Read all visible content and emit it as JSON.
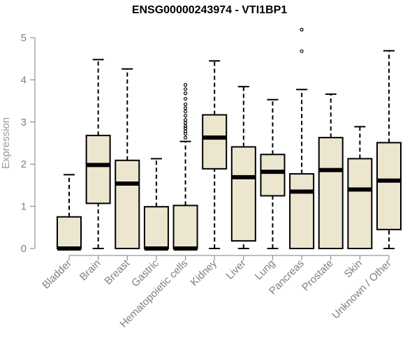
{
  "chart_data": {
    "type": "box",
    "title": "ENSG00000243974 - VTI1BP1",
    "xlabel": "",
    "ylabel": "Expression",
    "ylim": [
      0,
      5
    ],
    "yticks": [
      0,
      1,
      2,
      3,
      4,
      5
    ],
    "grid": false,
    "legend": "none",
    "colors": {
      "box_fill": "#ede6cf",
      "box_stroke": "#000000",
      "axis": "#7f7f7f",
      "tick_text": "#7f7f7f"
    },
    "categories": [
      "Bladder",
      "Brain",
      "Breast",
      "Gastric",
      "Hematopoietic cells",
      "Kidney",
      "Liver",
      "Lung",
      "Pancreas",
      "Prostate",
      "Skin",
      "Unknown / Other"
    ],
    "boxes": [
      {
        "name": "Bladder",
        "whisker_low": 0,
        "q1": 0,
        "median": 0,
        "q3": 0.75,
        "whisker_high": 1.75,
        "outliers": []
      },
      {
        "name": "Brain",
        "whisker_low": 0,
        "q1": 1.07,
        "median": 1.98,
        "q3": 2.68,
        "whisker_high": 4.48,
        "outliers": []
      },
      {
        "name": "Breast",
        "whisker_low": 0,
        "q1": 0,
        "median": 1.54,
        "q3": 2.09,
        "whisker_high": 4.26,
        "outliers": []
      },
      {
        "name": "Gastric",
        "whisker_low": 0,
        "q1": 0,
        "median": 0,
        "q3": 0.99,
        "whisker_high": 2.13,
        "outliers": []
      },
      {
        "name": "Hematopoietic cells",
        "whisker_low": 0,
        "q1": 0,
        "median": 0,
        "q3": 1.02,
        "whisker_high": 2.54,
        "outliers": [
          2.63,
          2.72,
          2.78,
          2.85,
          2.9,
          2.98,
          3.05,
          3.15,
          3.25,
          3.33,
          3.42,
          3.55,
          3.68,
          3.78,
          3.88
        ]
      },
      {
        "name": "Kidney",
        "whisker_low": 0,
        "q1": 1.89,
        "median": 2.63,
        "q3": 3.17,
        "whisker_high": 4.45,
        "outliers": []
      },
      {
        "name": "Liver",
        "whisker_low": 0,
        "q1": 0.18,
        "median": 1.69,
        "q3": 2.41,
        "whisker_high": 3.84,
        "outliers": []
      },
      {
        "name": "Lung",
        "whisker_low": 0,
        "q1": 1.25,
        "median": 1.82,
        "q3": 2.23,
        "whisker_high": 3.53,
        "outliers": []
      },
      {
        "name": "Pancreas",
        "whisker_low": 0,
        "q1": 0,
        "median": 1.35,
        "q3": 1.77,
        "whisker_high": 3.77,
        "outliers": [
          4.68,
          5.19
        ]
      },
      {
        "name": "Prostate",
        "whisker_low": 0,
        "q1": 0,
        "median": 1.86,
        "q3": 2.63,
        "whisker_high": 3.66,
        "outliers": []
      },
      {
        "name": "Skin",
        "whisker_low": 0,
        "q1": 0,
        "median": 1.4,
        "q3": 2.13,
        "whisker_high": 2.89,
        "outliers": []
      },
      {
        "name": "Unknown / Other",
        "whisker_low": 0,
        "q1": 0.45,
        "median": 1.61,
        "q3": 2.51,
        "whisker_high": 4.69,
        "outliers": []
      }
    ]
  }
}
